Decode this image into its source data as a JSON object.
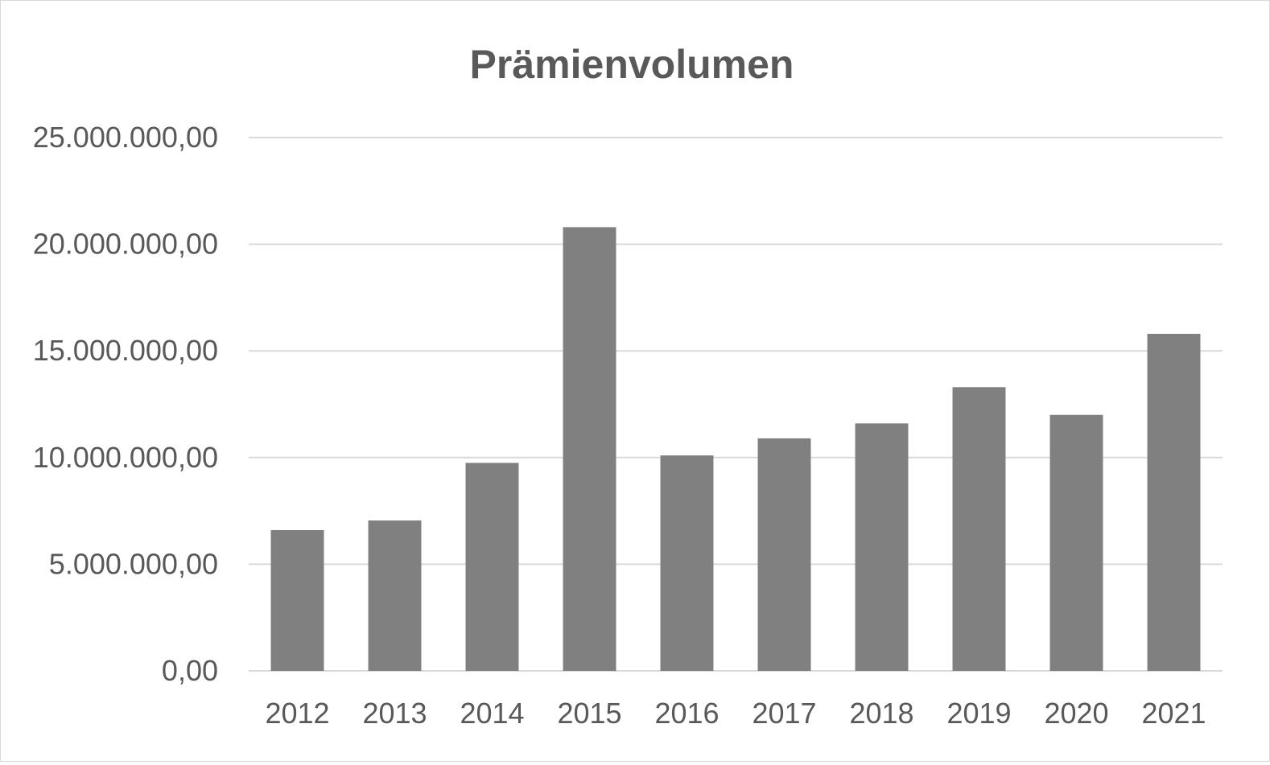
{
  "chart_data": {
    "type": "bar",
    "title": "Prämienvolumen",
    "xlabel": "",
    "ylabel": "",
    "categories": [
      "2012",
      "2013",
      "2014",
      "2015",
      "2016",
      "2017",
      "2018",
      "2019",
      "2020",
      "2021"
    ],
    "values": [
      6600000,
      7050000,
      9750000,
      20800000,
      10100000,
      10900000,
      11600000,
      13300000,
      12000000,
      15800000
    ],
    "ylim": [
      0,
      25000000
    ],
    "y_ticks": [
      0,
      5000000,
      10000000,
      15000000,
      20000000,
      25000000
    ],
    "y_tick_labels": [
      "0,00",
      "5.000.000,00",
      "10.000.000,00",
      "15.000.000,00",
      "20.000.000,00",
      "25.000.000,00"
    ],
    "grid": true,
    "legend": "none",
    "colors": {
      "bar": "#808080",
      "grid": "#d9d9d9",
      "text": "#595959"
    }
  }
}
